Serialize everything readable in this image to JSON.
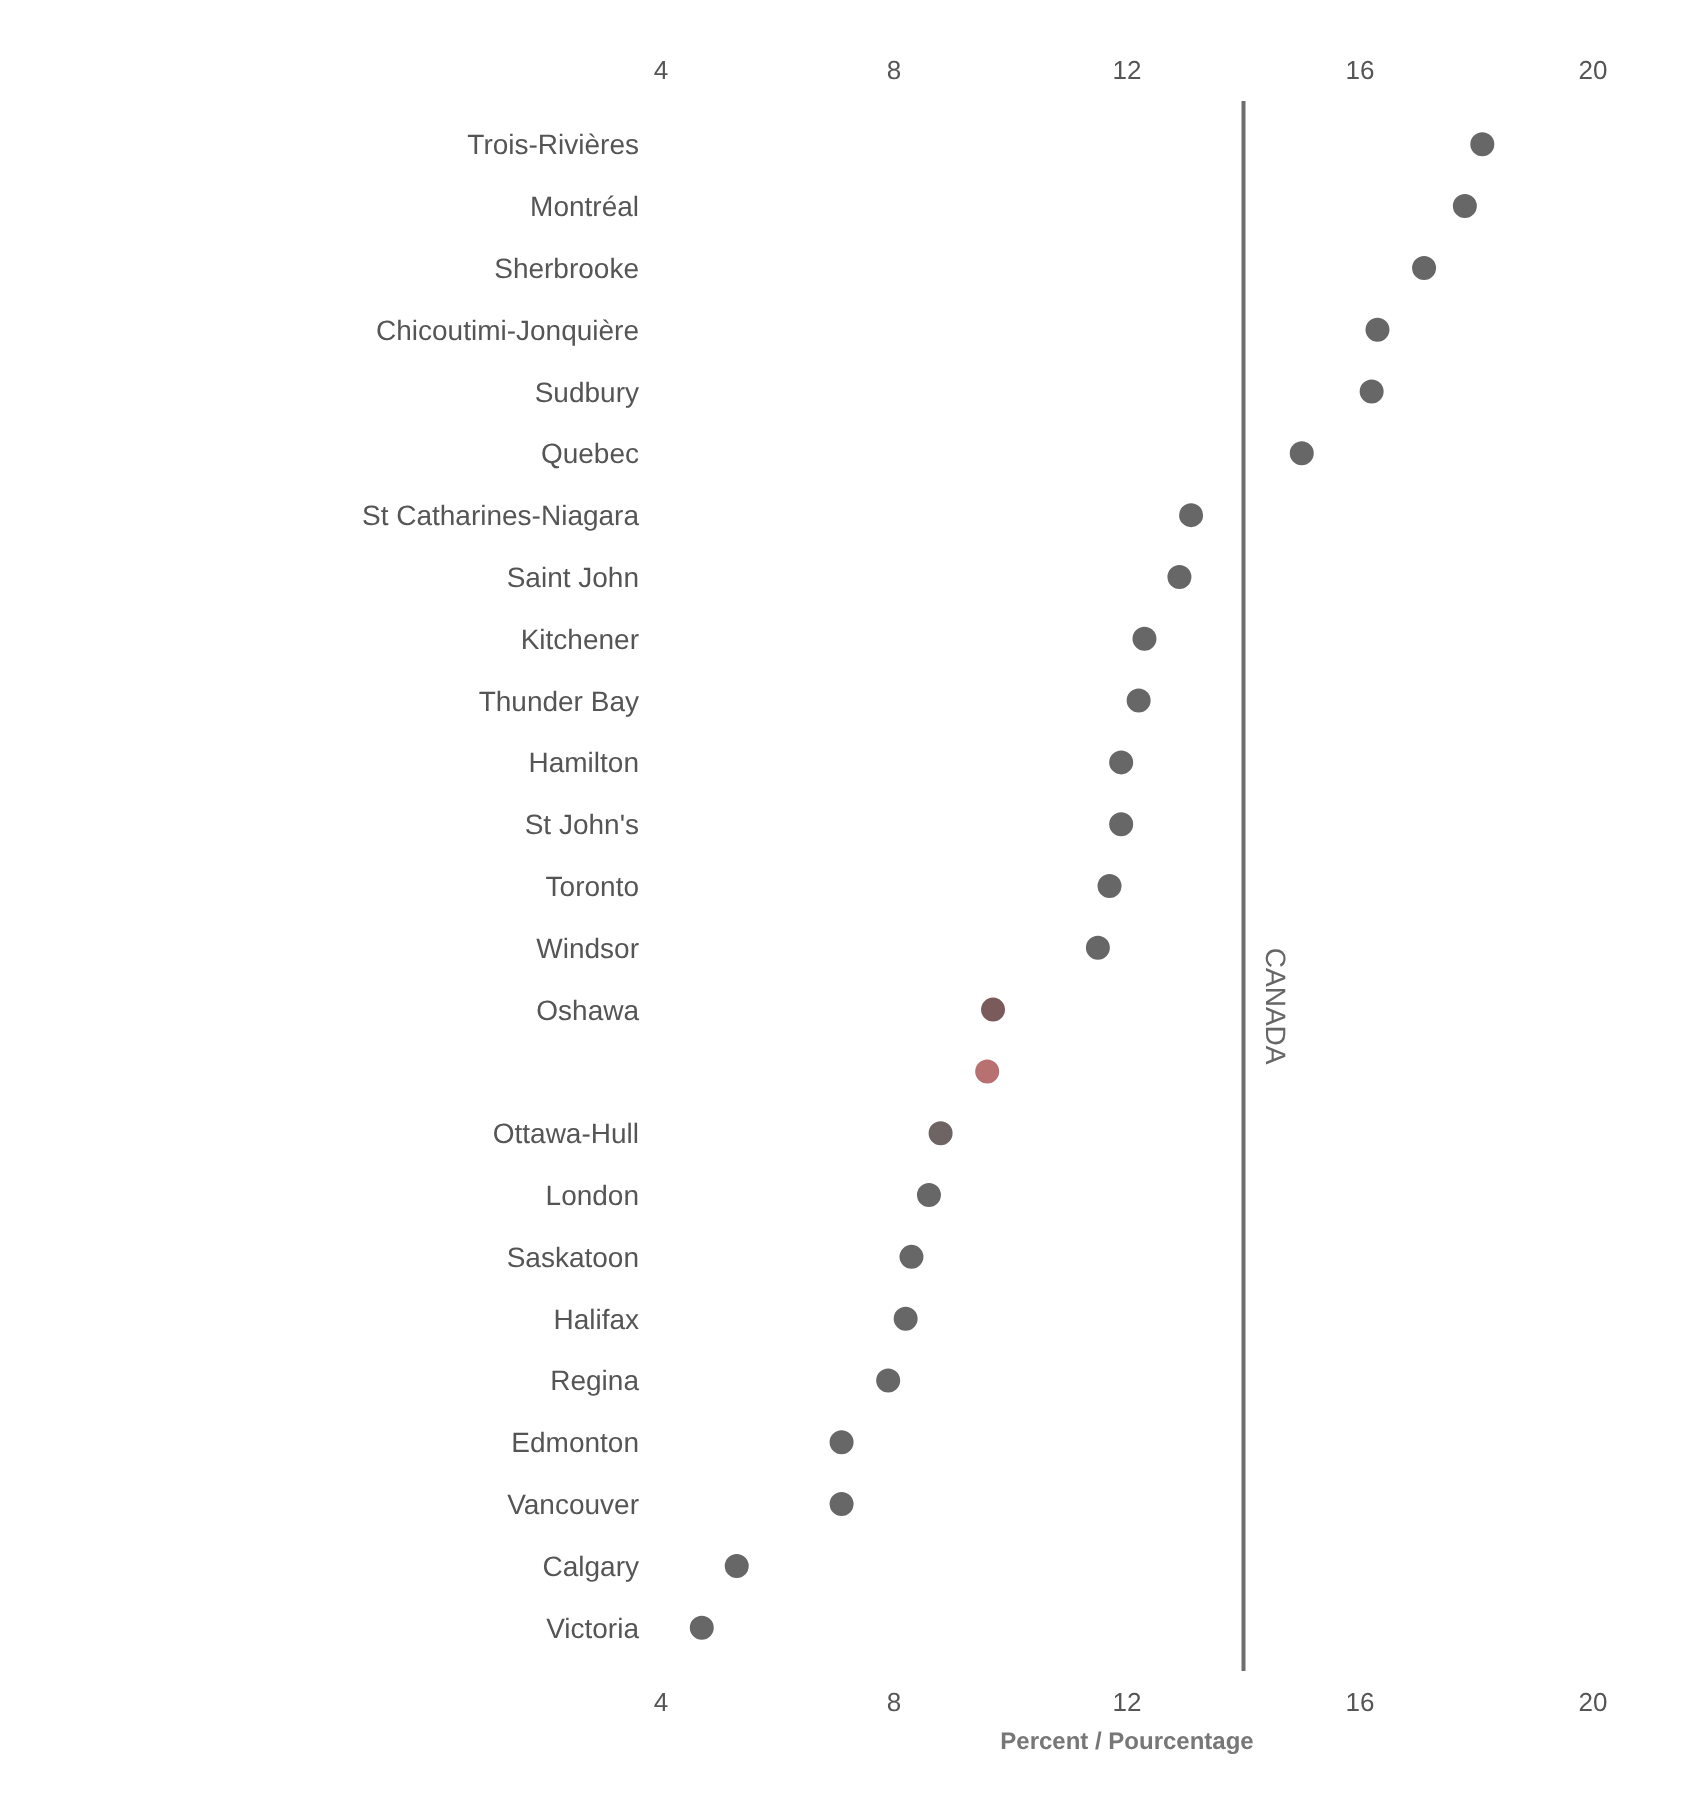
{
  "chart_data": {
    "type": "scatter",
    "xlabel": "Percent / Pourcentage",
    "categories": [
      "Trois-Rivières",
      "Montréal",
      "Sherbrooke",
      "Chicoutimi-Jonquière",
      "Sudbury",
      "Quebec",
      "St Catharines-Niagara",
      "Saint John",
      "Kitchener",
      "Thunder Bay",
      "Hamilton",
      "St John's",
      "Toronto",
      "Windsor",
      "Oshawa",
      null,
      "Ottawa-Hull",
      "London",
      "Saskatoon",
      "Halifax",
      "Regina",
      "Edmonton",
      "Vancouver",
      "Calgary",
      "Victoria"
    ],
    "values": [
      18.1,
      17.8,
      17.1,
      16.3,
      16.2,
      15.0,
      13.1,
      12.9,
      12.3,
      12.2,
      11.9,
      11.9,
      11.7,
      11.5,
      9.7,
      9.6,
      8.8,
      8.6,
      8.3,
      8.2,
      7.9,
      7.1,
      7.1,
      5.3,
      4.7
    ],
    "colors": [
      "#676767",
      "#676767",
      "#676767",
      "#676767",
      "#676767",
      "#676767",
      "#676767",
      "#676767",
      "#676767",
      "#676767",
      "#676767",
      "#676767",
      "#676767",
      "#676767",
      "#7a5a5a",
      "#b87070",
      "#6e6464",
      "#676767",
      "#676767",
      "#676767",
      "#676767",
      "#676767",
      "#676767",
      "#676767",
      "#676767"
    ],
    "orientation": "horizontal",
    "marker": "circle",
    "grid": false,
    "xlim": [
      4,
      20
    ],
    "xticks": [
      4,
      8,
      12,
      16,
      20
    ],
    "x2lim": [
      4,
      20
    ],
    "x2ticks": [
      4,
      8,
      12,
      16,
      20
    ],
    "ref_lines": [
      {
        "axis": "x",
        "value": 14.0,
        "label": "CANADA",
        "color": "#6e6e6e"
      }
    ]
  }
}
